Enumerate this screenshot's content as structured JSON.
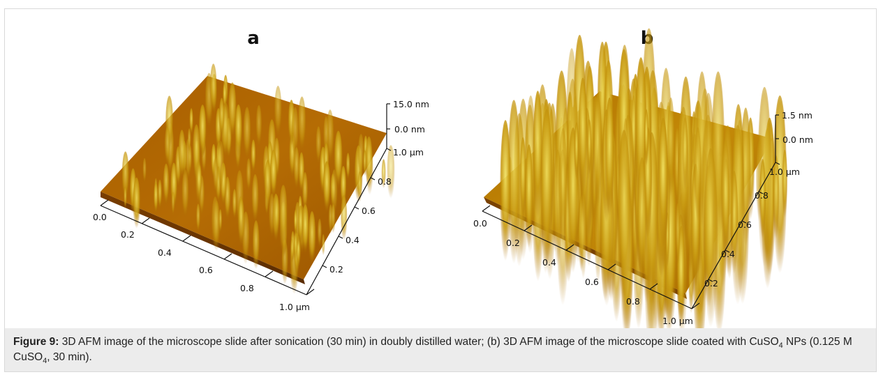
{
  "panels": [
    {
      "label": "a",
      "z_top": "15.0 nm",
      "z_zero": "0.0 nm",
      "y_ticks": [
        "1.0 µm",
        "0.8",
        "0.6",
        "0.4",
        "0.2"
      ],
      "x_ticks": [
        "0.0",
        "0.2",
        "0.4",
        "0.6",
        "0.8",
        "1.0 µm"
      ]
    },
    {
      "label": "b",
      "z_top": "1.5 nm",
      "z_zero": "0.0 nm",
      "y_ticks": [
        "1.0 µm",
        "0.8",
        "0.6",
        "0.4",
        "0.2"
      ],
      "x_ticks": [
        "0.0",
        "0.2",
        "0.4",
        "0.6",
        "0.8",
        "1.0 µm"
      ]
    }
  ],
  "caption": {
    "label": "Figure 9:",
    "part1": " 3D AFM image of the microscope slide after sonication (30 min) in doubly distilled water; (b) 3D AFM image of the microscope slide coated with CuSO",
    "sub1": "4",
    "part2": " NPs (0.125 M CuSO",
    "sub2": "4",
    "part3": ", 30 min)."
  },
  "colors": {
    "surface_dark": "#8a4a00",
    "surface_mid": "#b56a00",
    "surface_light": "#d4a000",
    "peak": "#e8d040",
    "caption_bg": "#ececec"
  }
}
